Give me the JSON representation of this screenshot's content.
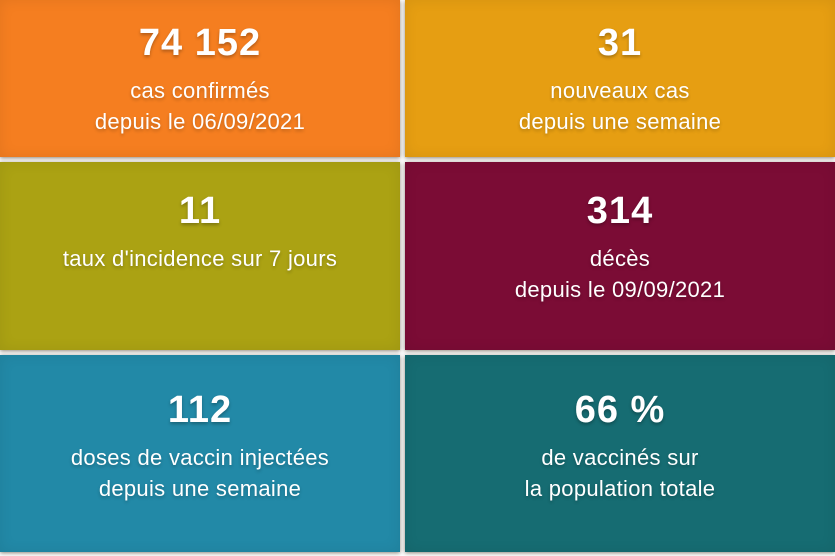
{
  "dashboard": {
    "tiles": [
      {
        "id": "confirmed-cases",
        "value": "74 152",
        "lines": [
          "cas confirmés",
          "depuis le 06/09/2021"
        ],
        "bg": "#F57E20"
      },
      {
        "id": "new-cases",
        "value": "31",
        "lines": [
          "nouveaux cas",
          "depuis une semaine"
        ],
        "bg": "#E69E12"
      },
      {
        "id": "incidence-rate",
        "value": "11",
        "lines": [
          "taux d'incidence sur 7 jours"
        ],
        "bg": "#ABA213"
      },
      {
        "id": "deaths",
        "value": "314",
        "lines": [
          "décès",
          "depuis le 09/09/2021"
        ],
        "bg": "#7B0C35"
      },
      {
        "id": "vaccine-doses",
        "value": "112",
        "lines": [
          "doses de vaccin injectées",
          "depuis une semaine"
        ],
        "bg": "#2289A7"
      },
      {
        "id": "vaccinated-percent",
        "value": "66 %",
        "lines": [
          "de vaccinés sur",
          "la population totale"
        ],
        "bg": "#166C72"
      }
    ]
  },
  "chart_data": {
    "type": "table",
    "title": "",
    "items": [
      {
        "value": 74152,
        "value_text": "74 152",
        "label": "cas confirmés depuis le 06/09/2021",
        "color": "#F57E20"
      },
      {
        "value": 31,
        "value_text": "31",
        "label": "nouveaux cas depuis une semaine",
        "color": "#E69E12"
      },
      {
        "value": 11,
        "value_text": "11",
        "label": "taux d'incidence sur 7 jours",
        "color": "#ABA213"
      },
      {
        "value": 314,
        "value_text": "314",
        "label": "décès depuis le 09/09/2021",
        "color": "#7B0C35"
      },
      {
        "value": 112,
        "value_text": "112",
        "label": "doses de vaccin injectées depuis une semaine",
        "color": "#2289A7"
      },
      {
        "value": 66,
        "value_text": "66 %",
        "label": "de vaccinés sur la population totale",
        "color": "#166C72",
        "unit": "%"
      }
    ]
  }
}
